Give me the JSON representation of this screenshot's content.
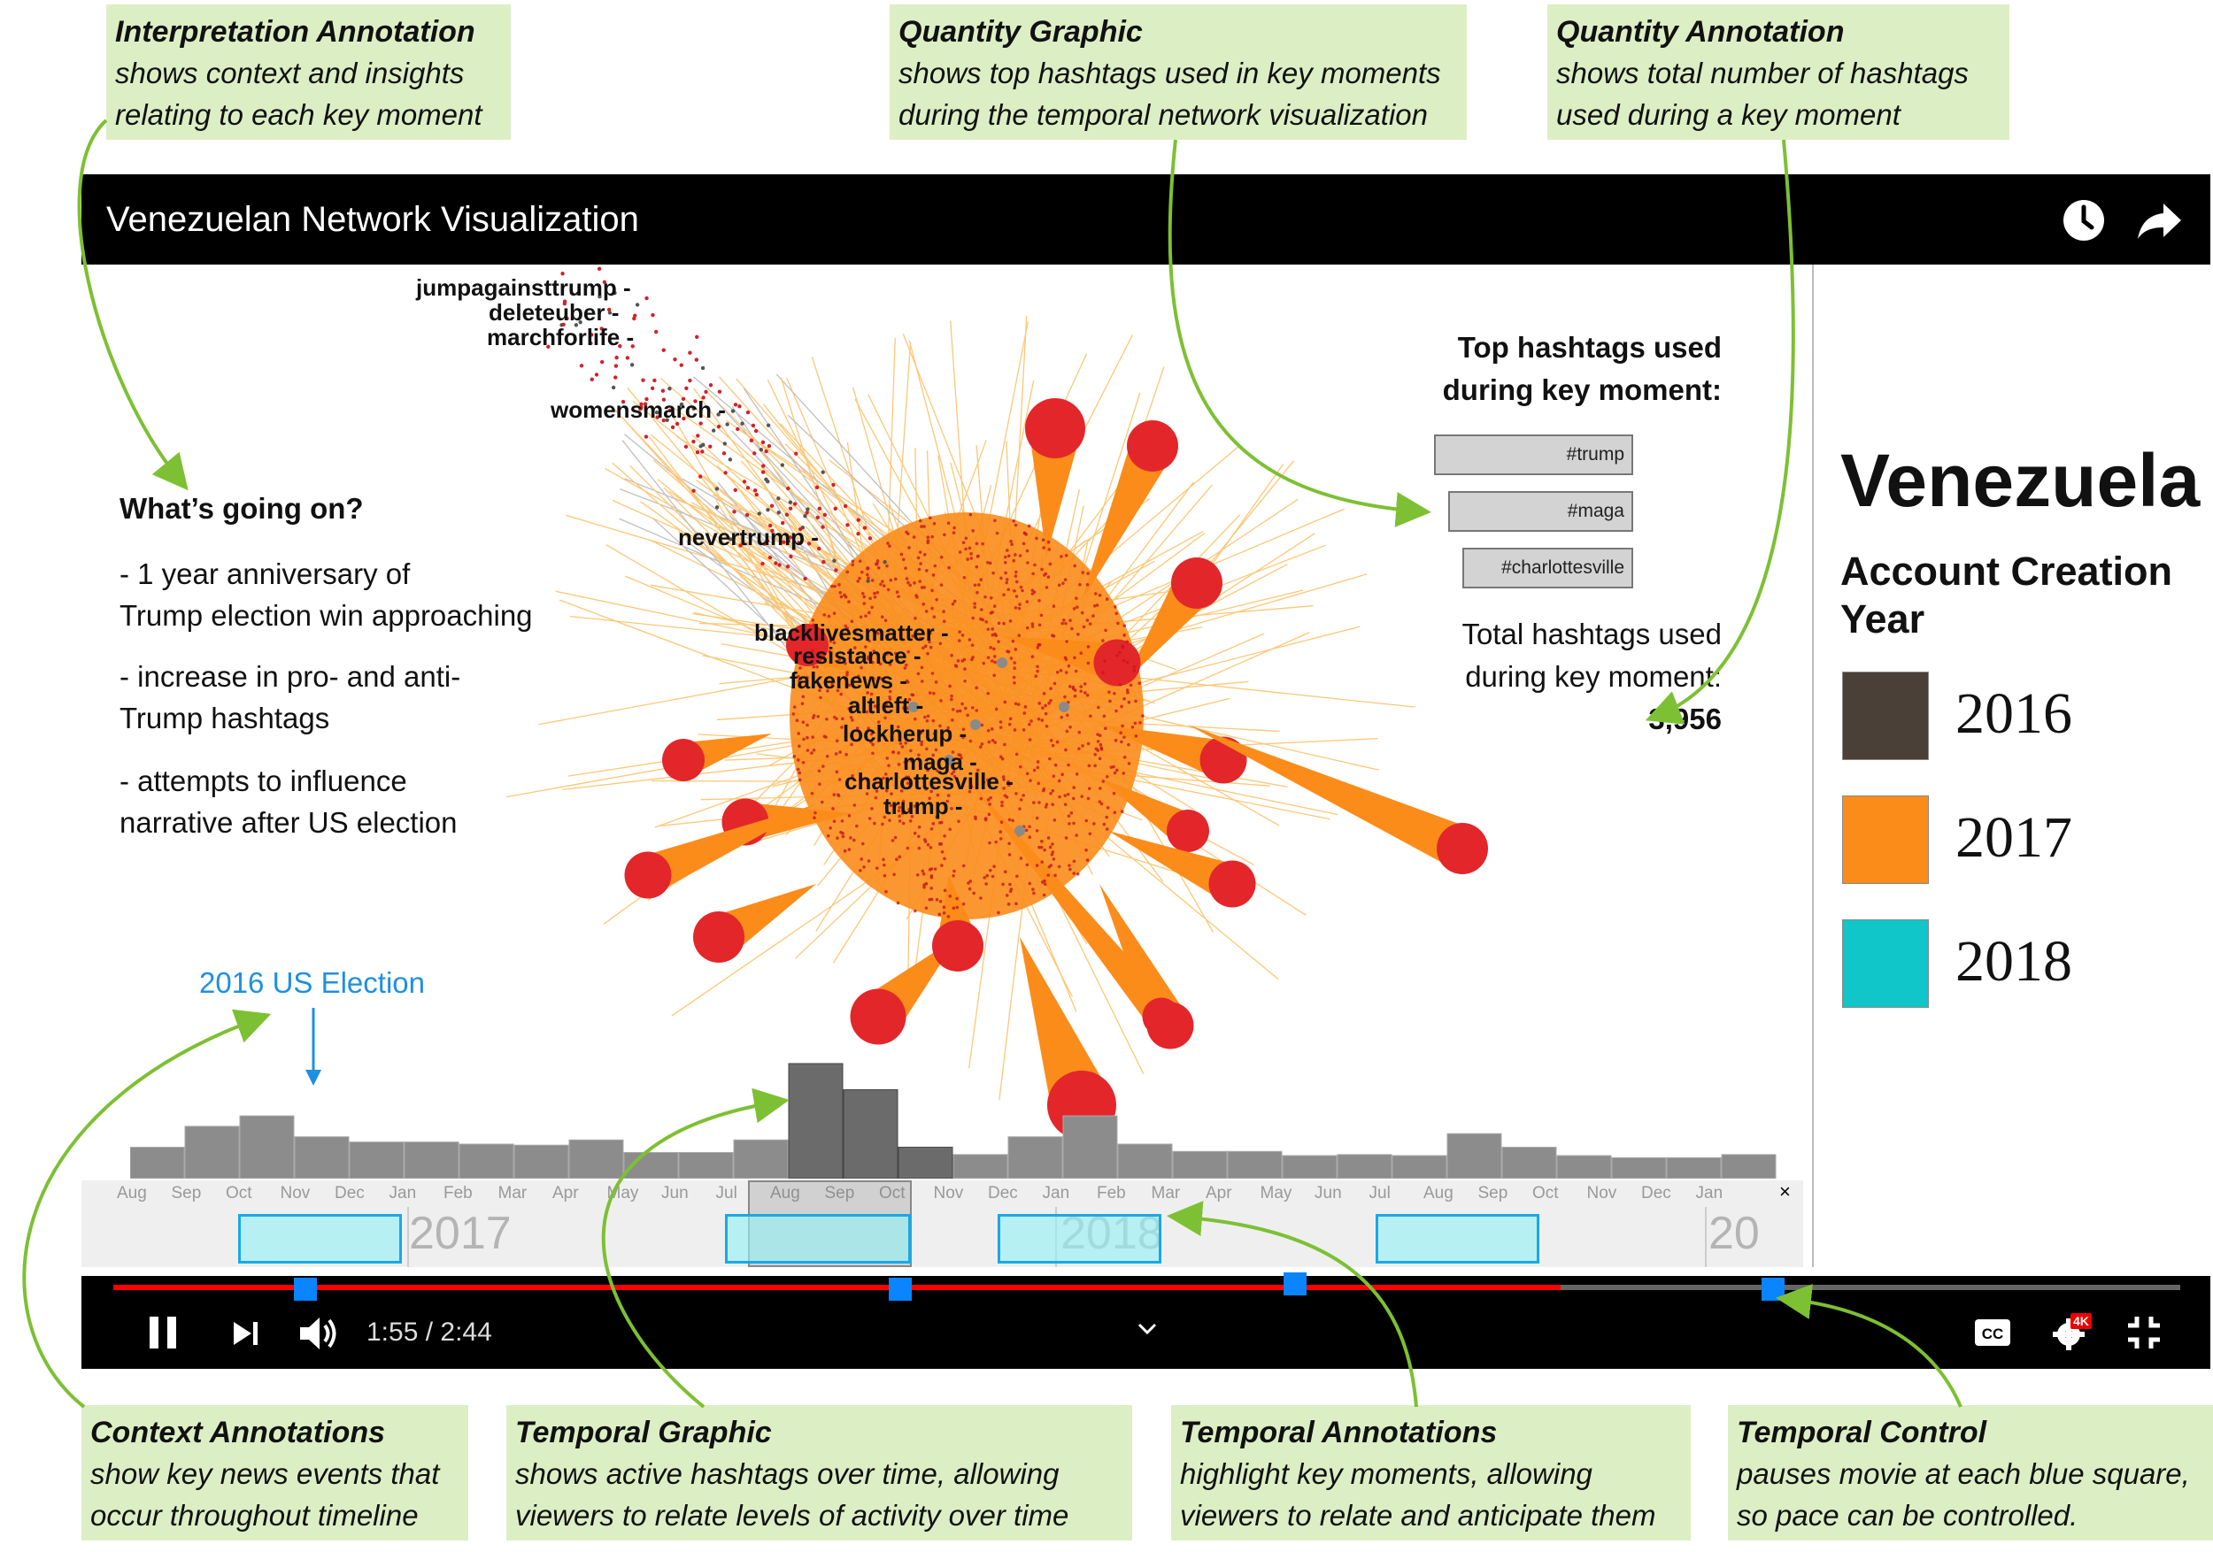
{
  "callouts": {
    "interpretation": {
      "title": "Interpretation Annotation",
      "body": "shows context and insights\nrelating to each key moment"
    },
    "quantity_graphic": {
      "title": "Quantity Graphic",
      "body": "shows top hashtags used in key moments\nduring the temporal network visualization"
    },
    "quantity_annotation": {
      "title": "Quantity Annotation",
      "body": "shows total number of  hashtags\nused during a key moment"
    },
    "context_annotations": {
      "title": "Context Annotations",
      "body": "show key news events that\noccur throughout timeline"
    },
    "temporal_graphic": {
      "title": "Temporal Graphic",
      "body": "shows active hashtags over time, allowing\nviewers to relate levels of activity over time"
    },
    "temporal_annotations": {
      "title": "Temporal Annotations",
      "body": "highlight key moments, allowing\nviewers to relate and anticipate them"
    },
    "temporal_control": {
      "title": "Temporal Control",
      "body": "pauses movie at each blue square,\nso pace can be controlled."
    }
  },
  "player": {
    "title": "Venezuelan Network Visualization",
    "icons": [
      "clock-icon",
      "share-icon"
    ],
    "time": "1:55 / 2:44",
    "progress": 0.7,
    "hd_badge": "4K"
  },
  "interpretation": {
    "heading": "What’s going on?",
    "bullets": [
      "- 1 year anniversary of\n  Trump election win approaching",
      "- increase in pro- and anti-\n  Trump hashtags",
      "- attempts to influence\n  narrative after US election"
    ]
  },
  "network_labels": [
    "jumpagainsttrump -",
    "deleteuber -",
    "marchforlife -",
    "womensmarch -",
    "nevertrump -",
    "blacklivesmatter -",
    "resistance -",
    "fakenews -",
    "altleft -",
    "lockherup -",
    "maga -",
    "charlottesville -",
    "trump -"
  ],
  "top_hashtags": {
    "heading": "Top hashtags used\nduring key moment:",
    "items": [
      {
        "label": "#trump",
        "fraction": 1.0
      },
      {
        "label": "#maga",
        "fraction": 0.95
      },
      {
        "label": "#charlottesville",
        "fraction": 0.83
      }
    ]
  },
  "total": {
    "label": "Total hashtags used\nduring key moment:",
    "value": "3,956"
  },
  "legend": {
    "country": "Venezuela",
    "title": "Account Creation\nYear",
    "items": [
      {
        "year": "2016",
        "color": "#4a4038"
      },
      {
        "year": "2017",
        "color": "#fb8c1a"
      },
      {
        "year": "2018",
        "color": "#10c6c8"
      }
    ]
  },
  "context": {
    "election_label": "2016 US Election"
  },
  "timeline": {
    "months": [
      "Aug",
      "Sep",
      "Oct",
      "Nov",
      "Dec",
      "Jan",
      "Feb",
      "Mar",
      "Apr",
      "May",
      "Jun",
      "Jul",
      "Aug",
      "Sep",
      "Oct",
      "Nov",
      "Dec",
      "Jan",
      "Feb",
      "Mar",
      "Apr",
      "May",
      "Jun",
      "Jul",
      "Aug",
      "Sep",
      "Oct",
      "Nov",
      "Dec",
      "Jan"
    ],
    "years": [
      "2017",
      "2018",
      "20"
    ],
    "close": "×"
  },
  "chart_data": {
    "type": "bar",
    "title": "",
    "categories": [
      "Aug",
      "Sep",
      "Oct",
      "Nov",
      "Dec",
      "Jan",
      "Feb",
      "Mar",
      "Apr",
      "May",
      "Jun",
      "Jul",
      "Aug",
      "Sep",
      "Oct",
      "Nov",
      "Dec",
      "Jan",
      "Feb",
      "Mar",
      "Apr",
      "May",
      "Jun",
      "Jul",
      "Aug",
      "Sep",
      "Oct",
      "Nov",
      "Dec",
      "Jan"
    ],
    "values": [
      3,
      5,
      6,
      4,
      3.5,
      3.5,
      3.3,
      3.2,
      3.7,
      2.5,
      2.5,
      3.7,
      11,
      8.5,
      3,
      2.3,
      4,
      6,
      3.3,
      2.6,
      2.6,
      2.2,
      2.3,
      2.2,
      4.3,
      3,
      2.2,
      2,
      2,
      2.3
    ],
    "highlighted_range": [
      "Aug",
      "Oct"
    ],
    "grid": false
  },
  "colors": {
    "accent_green": "#7dc033",
    "marker_blue": "#0a84ff",
    "progress_red": "#ff0000",
    "highlight_cyan": "#b5f4f7",
    "context_blue": "#1e90e0"
  }
}
